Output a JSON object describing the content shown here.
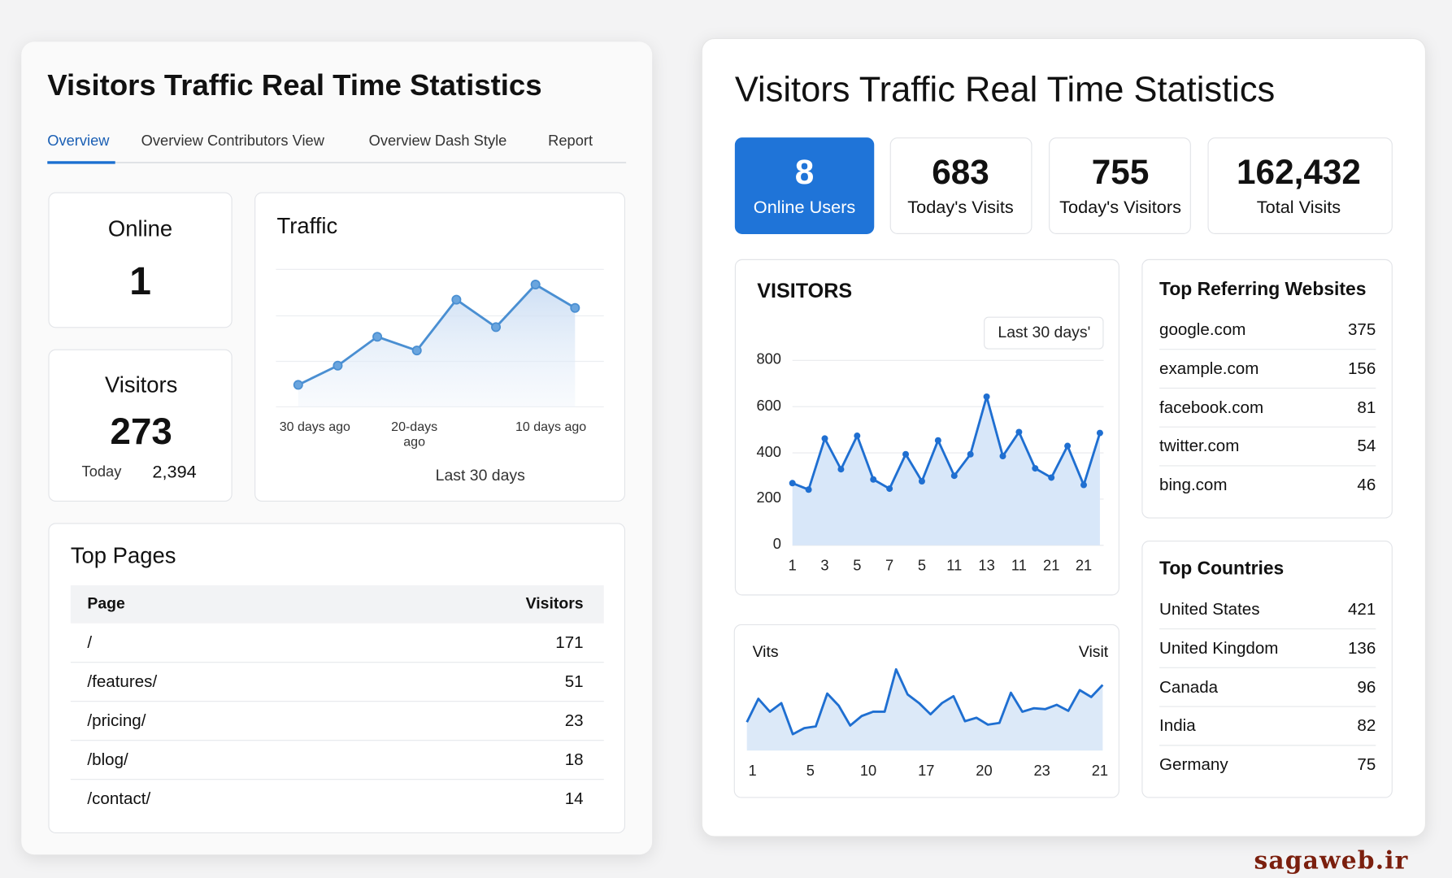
{
  "left": {
    "title": "Visitors Traffic Real Time Statistics",
    "tabs": [
      "Overview",
      "Overview Contributors View",
      "Overview Dash Style",
      "Report"
    ],
    "online": {
      "label": "Online",
      "value": 1
    },
    "visitors": {
      "label": "Visitors",
      "value": 273,
      "today_label": "Today",
      "today_value": "2,394"
    },
    "traffic": {
      "type": "line",
      "title": "Traffic",
      "values": [
        16,
        30,
        51,
        41,
        78,
        58,
        89,
        72
      ],
      "ylim": [
        0,
        100
      ],
      "x_labels": [
        "30 days ago",
        "20-days ago",
        "10 days ago"
      ],
      "footer": "Last 30 days",
      "color": "#4a8fd2"
    },
    "top_pages": {
      "title": "Top Pages",
      "columns": [
        "Page",
        "Visitors"
      ],
      "rows": [
        [
          "/",
          171
        ],
        [
          "/features/",
          51
        ],
        [
          "/pricing/",
          23
        ],
        [
          "/blog/",
          18
        ],
        [
          "/contact/",
          14
        ]
      ]
    }
  },
  "right": {
    "title": "Visitors Traffic Real Time Statistics",
    "stats": [
      {
        "value": 8,
        "label": "Online Users"
      },
      {
        "value": 683,
        "label": "Today's Visits"
      },
      {
        "value": 755,
        "label": "Today's Visitors"
      },
      {
        "value": "162,432",
        "label": "Total Visits"
      }
    ],
    "visitors_chart": {
      "type": "line",
      "title": "VISITORS",
      "range_button": "Last 30 days'",
      "categories": [
        "1",
        null,
        "3",
        null,
        "5",
        null,
        "7",
        null,
        "5",
        null,
        "11",
        null,
        "13",
        null,
        "11",
        null,
        "21",
        null,
        "21",
        null
      ],
      "values": [
        269,
        241,
        462,
        329,
        474,
        285,
        245,
        394,
        277,
        454,
        301,
        394,
        643,
        386,
        490,
        333,
        293,
        430,
        261,
        486
      ],
      "ylim": [
        0,
        800
      ],
      "yticks": [
        0,
        200,
        400,
        600,
        800
      ],
      "grid": true,
      "color": "#1f6fd1"
    },
    "visits_chart": {
      "type": "line",
      "label_left": "Vits",
      "label_right": "Visit",
      "x_labels": [
        "1",
        "5",
        "10",
        "17",
        "20",
        "23",
        "21"
      ],
      "values": [
        33,
        60,
        45,
        55,
        19,
        26,
        28,
        66,
        52,
        29,
        40,
        45,
        45,
        94,
        65,
        55,
        42,
        55,
        63,
        34,
        38,
        30,
        32,
        67,
        45,
        49,
        48,
        53,
        46,
        70,
        62,
        76
      ],
      "ylim": [
        0,
        100
      ],
      "color": "#1f6fd1"
    },
    "referrers": {
      "title": "Top Referring Websites",
      "rows": [
        [
          "google.com",
          375
        ],
        [
          "example.com",
          156
        ],
        [
          "facebook.com",
          81
        ],
        [
          "twitter.com",
          54
        ],
        [
          "bing.com",
          46
        ]
      ]
    },
    "countries": {
      "title": "Top Countries",
      "rows": [
        [
          "United States",
          421
        ],
        [
          "United Kingdom",
          136
        ],
        [
          "Canada",
          96
        ],
        [
          "India",
          82
        ],
        [
          "Germany",
          75
        ]
      ]
    }
  },
  "watermark": "sagaweb.ir"
}
